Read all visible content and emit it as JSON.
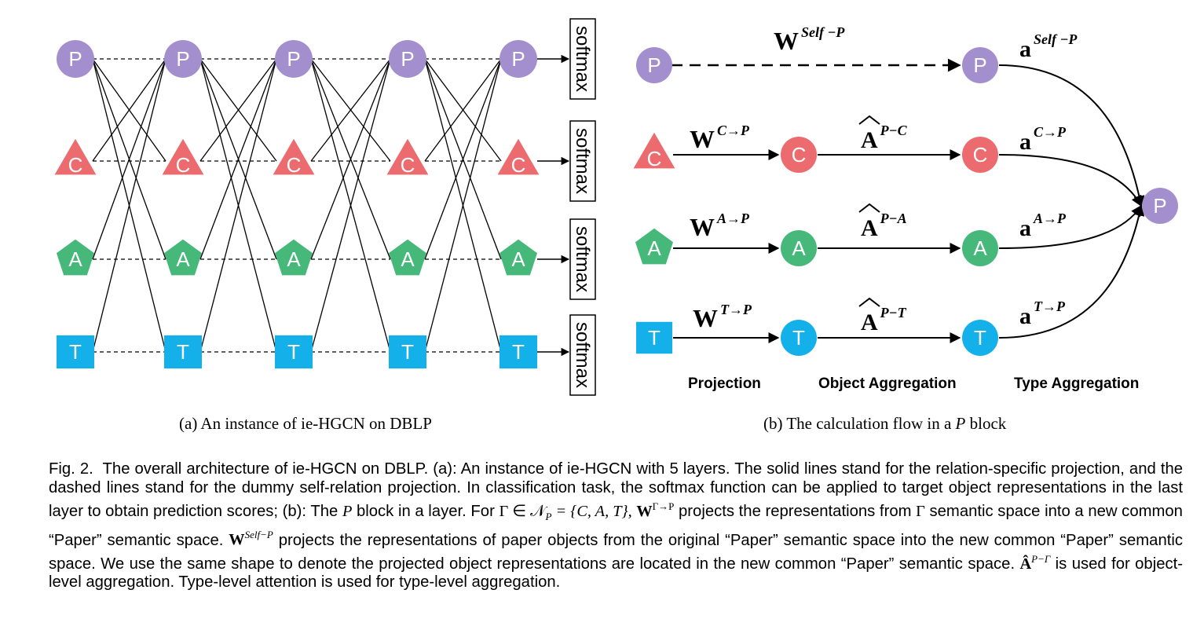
{
  "colors": {
    "paper": "#a48fce",
    "conference": "#ec6b6f",
    "author": "#46b87a",
    "term": "#14b0ea",
    "edge": "#000000"
  },
  "panel_a": {
    "node_letters": {
      "paper": "P",
      "conference": "C",
      "author": "A",
      "term": "T"
    },
    "layer_count": 5,
    "softmax_label": "softmax",
    "subcaption": "(a)  An instance of ie-HGCN on DBLP"
  },
  "panel_b": {
    "weights": {
      "self": {
        "base": "W",
        "sup": "Self −P"
      },
      "conference": {
        "base": "W",
        "sup": "C→P"
      },
      "author": {
        "base": "W",
        "sup": "A→P"
      },
      "term": {
        "base": "W",
        "sup": "T→P"
      }
    },
    "adjacency": {
      "conference": {
        "base": "A",
        "sup": "P−C"
      },
      "author": {
        "base": "A",
        "sup": "P−A"
      },
      "term": {
        "base": "A",
        "sup": "P−T"
      }
    },
    "attention": {
      "self": {
        "base": "a",
        "sup": "Self −P"
      },
      "conference": {
        "base": "a",
        "sup": "C→P"
      },
      "author": {
        "base": "a",
        "sup": "A→P"
      },
      "term": {
        "base": "a",
        "sup": "T→P"
      }
    },
    "stages": {
      "projection": "Projection",
      "object_aggregation": "Object Aggregation",
      "type_aggregation": "Type Aggregation"
    },
    "subcaption": {
      "prefix": "(b)  The calculation flow in a",
      "var": "P",
      "suffix": "block"
    }
  },
  "caption": {
    "label": "Fig. 2.",
    "part1": "The overall architecture of ie-HGCN on DBLP. (a): An instance of ie-HGCN with 5 layers. The solid lines stand for the relation-specific projection, and the dashed lines stand for the dummy self-relation projection. In classification task, the softmax function can be applied to target object representations in the last layer to obtain prediction scores; (b): The",
    "var_p": "P",
    "part2": "block in a layer. For",
    "math_set": "Γ ∈ 𝒩",
    "math_set_sub": "P",
    "math_set_rest": "= {C, A, T},",
    "math_w": "W",
    "math_w_sup": "Γ→P",
    "part3": "projects the representations from",
    "math_gamma": "Γ",
    "part4": "semantic space into a new common “Paper” semantic space.",
    "math_w2": "W",
    "math_w2_sup": "Self−P",
    "part5": "projects the representations of paper objects from the original “Paper” semantic space into the new common “Paper” semantic space. We use the same shape to denote the projected object representations are located in the new common “Paper” semantic space.",
    "math_a": "Â",
    "math_a_sup": "P−Γ",
    "part6": "is used for object-level aggregation. Type-level attention is used for type-level aggregation."
  }
}
